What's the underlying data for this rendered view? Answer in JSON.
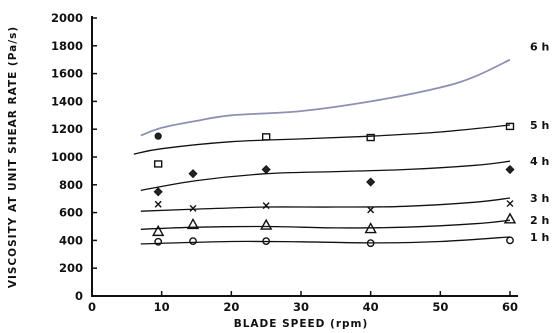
{
  "chart_data": {
    "type": "line",
    "title": "",
    "xlabel": "BLADE SPEED (rpm)",
    "ylabel": "VISCOSITY AT UNIT SHEAR RATE (Pa/s)",
    "xlim": [
      0,
      60
    ],
    "ylim": [
      0,
      2000
    ],
    "x_ticks": [
      "0",
      "10",
      "20",
      "30",
      "40",
      "50",
      "60"
    ],
    "y_ticks": [
      "0",
      "200",
      "400",
      "600",
      "800",
      "1000",
      "1200",
      "1400",
      "1600",
      "1800",
      "2000"
    ],
    "grid": false,
    "series": [
      {
        "name": "1 h",
        "marker": "circle",
        "points": [
          [
            9.5,
            390
          ],
          [
            14.5,
            395
          ],
          [
            25,
            395
          ],
          [
            40,
            380
          ],
          [
            60,
            400
          ]
        ],
        "curve": [
          [
            7,
            375
          ],
          [
            20,
            392
          ],
          [
            30,
            390
          ],
          [
            40,
            382
          ],
          [
            50,
            392
          ],
          [
            60,
            425
          ]
        ]
      },
      {
        "name": "2 h",
        "marker": "triangle",
        "points": [
          [
            9.5,
            465
          ],
          [
            14.5,
            515
          ],
          [
            25,
            510
          ],
          [
            40,
            485
          ],
          [
            60,
            555
          ]
        ],
        "curve": [
          [
            7,
            480
          ],
          [
            15,
            495
          ],
          [
            25,
            500
          ],
          [
            35,
            490
          ],
          [
            45,
            495
          ],
          [
            55,
            520
          ],
          [
            60,
            545
          ]
        ]
      },
      {
        "name": "3 h",
        "marker": "x",
        "points": [
          [
            9.5,
            660
          ],
          [
            14.5,
            630
          ],
          [
            25,
            650
          ],
          [
            40,
            620
          ],
          [
            60,
            665
          ]
        ],
        "curve": [
          [
            7,
            610
          ],
          [
            15,
            625
          ],
          [
            25,
            640
          ],
          [
            35,
            640
          ],
          [
            45,
            645
          ],
          [
            55,
            675
          ],
          [
            60,
            705
          ]
        ]
      },
      {
        "name": "4 h",
        "marker": "diamond",
        "points": [
          [
            9.5,
            750
          ],
          [
            14.5,
            880
          ],
          [
            25,
            910
          ],
          [
            40,
            820
          ],
          [
            60,
            910
          ]
        ],
        "curve": [
          [
            7,
            760
          ],
          [
            15,
            830
          ],
          [
            25,
            880
          ],
          [
            35,
            895
          ],
          [
            45,
            910
          ],
          [
            55,
            940
          ],
          [
            60,
            970
          ]
        ]
      },
      {
        "name": "5 h",
        "marker": "square",
        "points": [
          [
            9.5,
            950
          ],
          [
            25,
            1145
          ],
          [
            40,
            1140
          ],
          [
            60,
            1220
          ]
        ],
        "curve": [
          [
            6,
            1020
          ],
          [
            10,
            1060
          ],
          [
            20,
            1110
          ],
          [
            30,
            1130
          ],
          [
            40,
            1150
          ],
          [
            50,
            1180
          ],
          [
            60,
            1230
          ]
        ]
      },
      {
        "name": "6 h",
        "marker": "octagon",
        "points": [
          [
            9.5,
            1150
          ]
        ],
        "curve": [
          [
            7,
            1155
          ],
          [
            10,
            1210
          ],
          [
            15,
            1260
          ],
          [
            20,
            1300
          ],
          [
            30,
            1330
          ],
          [
            40,
            1400
          ],
          [
            50,
            1500
          ],
          [
            55,
            1580
          ],
          [
            60,
            1700
          ]
        ]
      }
    ]
  }
}
